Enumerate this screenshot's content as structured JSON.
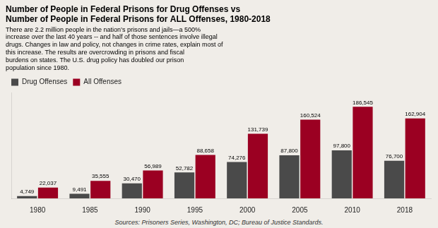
{
  "chart_data": {
    "type": "bar",
    "title": "Number of People in Federal Prisons for Drug Offenses vs\nNumber of People in Federal Prisons for ALL Offenses, 1980-2018",
    "subtitle": "There are 2.2 million people in the nation’s prisons and jails—a 500%\nincrease over the last 40 years -- and half of those sentences involve illegal\ndrugs. Changes in law and policy, not changes in crime rates, explain most of\nthis increase. The results are overcrowding in prisons and fiscal\nburdens on states. The U.S. drug policy has doubled our prison\npopulation since 1980.",
    "source": "Sources: Prisoners Series, Washington, DC; Bureau of Justice Standards.",
    "categories": [
      "1980",
      "1985",
      "1990",
      "1995",
      "2000",
      "2005",
      "2010",
      "2018"
    ],
    "series": [
      {
        "name": "Drug Offenses",
        "color": "#4a4a4a",
        "values": [
          4749,
          9491,
          30470,
          52782,
          74276,
          87800,
          97800,
          76700
        ],
        "value_labels": [
          "4,749",
          "9,491",
          "30,470",
          "52,782",
          "74,276",
          "87,800",
          "97,800",
          "76,700"
        ]
      },
      {
        "name": "All Offenses",
        "color": "#9b0022",
        "values": [
          22037,
          35555,
          56989,
          88658,
          131739,
          160524,
          186545,
          162904
        ],
        "value_labels": [
          "22,037",
          "35,555",
          "56,989",
          "88,658",
          "131,739",
          "160,524",
          "186,545",
          "162,904"
        ]
      }
    ],
    "ylim": [
      0,
      215000
    ],
    "grid": false,
    "legend": "upper left",
    "data_labels": true,
    "tick_labels": "x"
  }
}
